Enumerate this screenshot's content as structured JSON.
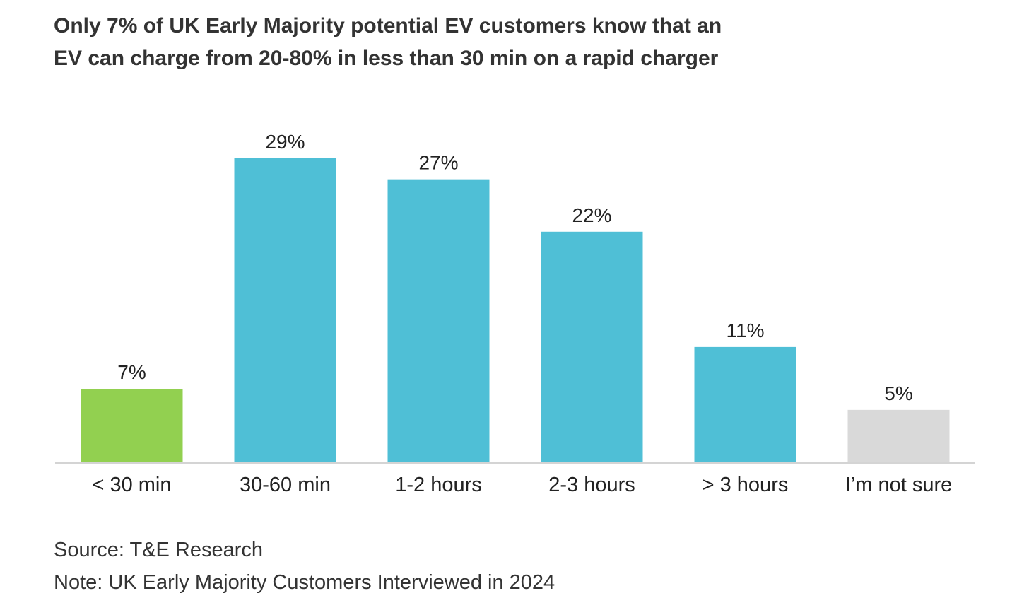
{
  "title": {
    "line1": "Only 7% of UK Early Majority potential EV customers know that an",
    "line2": "EV can charge from 20-80% in less than 30 min on a rapid charger"
  },
  "chart_data": {
    "type": "bar",
    "title": "Only 7% of UK Early Majority potential EV customers know that an EV can charge from 20-80% in less than 30 min on a rapid charger",
    "categories": [
      "< 30 min",
      "30-60 min",
      "1-2 hours",
      "2-3 hours",
      "> 3 hours",
      "I’m not sure"
    ],
    "values": [
      7,
      29,
      27,
      22,
      11,
      5
    ],
    "value_labels": [
      "7%",
      "29%",
      "27%",
      "22%",
      "11%",
      "5%"
    ],
    "colors": [
      "#92d050",
      "#4fbfd6",
      "#4fbfd6",
      "#4fbfd6",
      "#4fbfd6",
      "#d9d9d9"
    ],
    "xlabel": "",
    "ylabel": "",
    "ylim": [
      0,
      32
    ],
    "grid": false,
    "legend": "none"
  },
  "footer": {
    "source": "Source: T&E Research",
    "note": "Note: UK Early Majority Customers Interviewed in 2024"
  }
}
